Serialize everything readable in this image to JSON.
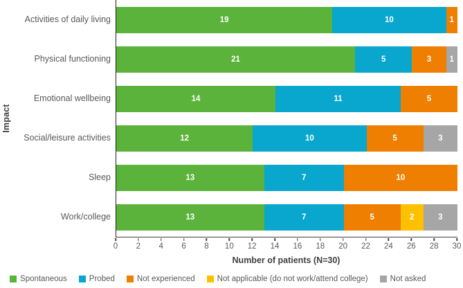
{
  "chart_data": {
    "type": "bar",
    "orientation": "horizontal",
    "stacked": true,
    "title": "",
    "xlabel": "Number of patients (N=30)",
    "ylabel": "Impact",
    "xlim": [
      0,
      30
    ],
    "xticks": [
      0,
      2,
      4,
      6,
      8,
      10,
      12,
      14,
      16,
      18,
      20,
      22,
      24,
      26,
      28,
      30
    ],
    "grid": false,
    "legend_position": "bottom",
    "categories": [
      "Activities of daily living",
      "Physical functioning",
      "Emotional wellbeing",
      "Social/leisure activities",
      "Sleep",
      "Work/college"
    ],
    "series": [
      {
        "name": "Spontaneous",
        "color": "#5bb33b",
        "values": [
          19,
          21,
          14,
          12,
          13,
          13
        ]
      },
      {
        "name": "Probed",
        "color": "#09a6ce",
        "values": [
          10,
          5,
          11,
          10,
          7,
          7
        ]
      },
      {
        "name": "Not experienced",
        "color": "#ee7f00",
        "values": [
          1,
          3,
          5,
          5,
          10,
          5
        ]
      },
      {
        "name": "Not applicable (do not work/attend college)",
        "color": "#ffc000",
        "values": [
          0,
          0,
          0,
          0,
          0,
          2
        ]
      },
      {
        "name": "Not asked",
        "color": "#a6a6a6",
        "values": [
          0,
          1,
          0,
          3,
          0,
          3
        ]
      }
    ],
    "colors": {
      "axis_line": "#1a1a1a",
      "tick_text": "#595959",
      "category_text": "#595959",
      "axis_title_text": "#404040",
      "bar_value_text": "#ffffff"
    }
  }
}
